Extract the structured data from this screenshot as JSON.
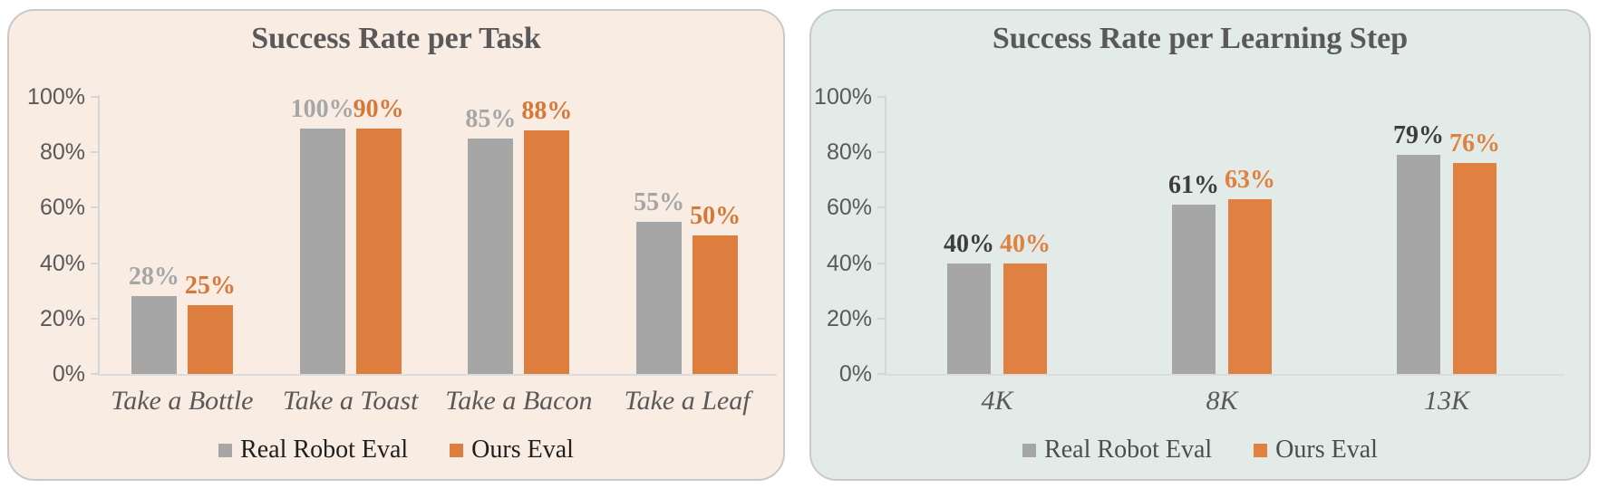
{
  "page": {
    "background": "#ffffff"
  },
  "chart_data": [
    {
      "type": "bar",
      "title": "Success Rate per Task",
      "panel_bg": "#f9ece2",
      "title_color": "#595959",
      "axis_color": "#d6d6d6",
      "tick_text_color": "#595959",
      "category_text_color": "#595959",
      "legend_text_color": "#1f1f1f",
      "legend_position": "bottom",
      "grid": false,
      "ylim": [
        0,
        100
      ],
      "y_ticks": [
        {
          "label": "100%",
          "pct": 100
        },
        {
          "label": "80%",
          "pct": 80
        },
        {
          "label": "60%",
          "pct": 60
        },
        {
          "label": "40%",
          "pct": 40
        },
        {
          "label": "20%",
          "pct": 20
        },
        {
          "label": "0%",
          "pct": 0
        }
      ],
      "categories": [
        "Take a Bottle",
        "Take a Toast",
        "Take a Bacon",
        "Take a Leaf"
      ],
      "series": [
        {
          "name": "Real Robot Eval",
          "color": "#a6a6a6",
          "label_color": "#a6a6a6",
          "values": [
            28,
            100,
            85,
            55
          ],
          "labels": [
            "28%",
            "100%",
            "85%",
            "55%"
          ]
        },
        {
          "name": "Ours Eval",
          "color": "#dd7e3e",
          "label_color": "#d6783a",
          "values": [
            25,
            90,
            88,
            50
          ],
          "labels": [
            "25%",
            "90%",
            "88%",
            "50%"
          ]
        }
      ]
    },
    {
      "type": "bar",
      "title": "Success Rate per Learning Step",
      "panel_bg": "#e2ebe8",
      "title_color": "#595959",
      "axis_color": "#d6d6d6",
      "tick_text_color": "#595959",
      "category_text_color": "#595959",
      "legend_text_color": "#4d4d4d",
      "legend_position": "bottom",
      "grid": false,
      "ylim": [
        0,
        100
      ],
      "y_ticks": [
        {
          "label": "100%",
          "pct": 100
        },
        {
          "label": "80%",
          "pct": 80
        },
        {
          "label": "60%",
          "pct": 60
        },
        {
          "label": "40%",
          "pct": 40
        },
        {
          "label": "20%",
          "pct": 20
        },
        {
          "label": "0%",
          "pct": 0
        }
      ],
      "categories": [
        "4K",
        "8K",
        "13K"
      ],
      "series": [
        {
          "name": "Real Robot Eval",
          "color": "#a6a6a6",
          "label_color": "#3d3d3d",
          "values": [
            40,
            61,
            79
          ],
          "labels": [
            "40%",
            "61%",
            "79%"
          ]
        },
        {
          "name": "Ours Eval",
          "color": "#e08142",
          "label_color": "#e0813f",
          "values": [
            40,
            63,
            76
          ],
          "labels": [
            "40%",
            "63%",
            "76%"
          ]
        }
      ]
    }
  ]
}
